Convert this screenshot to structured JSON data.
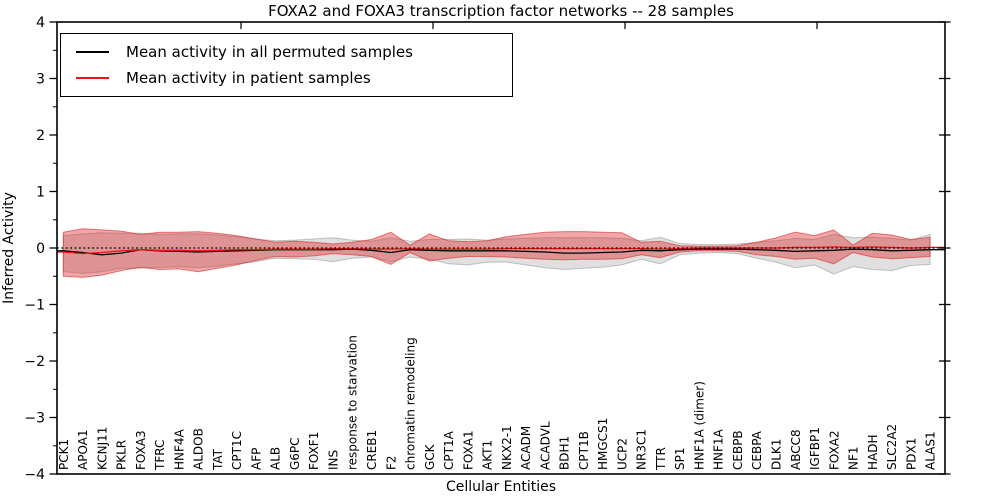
{
  "title": "FOXA2 and FOXA3 transcription factor networks -- 28 samples",
  "legend": {
    "items": [
      {
        "label": "Mean activity in all permuted samples",
        "color": "#000000"
      },
      {
        "label": "Mean activity in patient samples",
        "color": "#f01414"
      }
    ]
  },
  "axes": {
    "xlabel": "Cellular Entities",
    "ylabel": "Inferred Activity",
    "yticks": [
      4,
      3,
      2,
      1,
      0,
      -1,
      -2,
      -3,
      -4
    ],
    "ytick_labels": [
      "4",
      "3",
      "2",
      "1",
      "0",
      "−1",
      "−2",
      "−3",
      "−4"
    ]
  },
  "chart_data": {
    "type": "line",
    "title": "FOXA2 and FOXA3 transcription factor networks -- 28 samples",
    "xlabel": "Cellular Entities",
    "ylabel": "Inferred Activity",
    "ylim": [
      -4,
      4
    ],
    "grid": false,
    "legend_position": "upper left",
    "zero_line": 0,
    "categories": [
      "PCK1",
      "APOA1",
      "KCNJ11",
      "PKLR",
      "FOXA3",
      "TFRC",
      "HNF4A",
      "ALDOB",
      "TAT",
      "CPT1C",
      "AFP",
      "ALB",
      "G6PC",
      "FOXF1",
      "INS",
      "response to starvation",
      "CREB1",
      "F2",
      "chromatin remodeling",
      "GCK",
      "CPT1A",
      "FOXA1",
      "AKT1",
      "NKX2-1",
      "ACADM",
      "ACADVL",
      "BDH1",
      "CPT1B",
      "HMGCS1",
      "UCP2",
      "NR3C1",
      "TTR",
      "SP1",
      "HNF1A (dimer)",
      "HNF1A",
      "CEBPB",
      "CEBPA",
      "DLK1",
      "ABCC8",
      "IGFBP1",
      "FOXA2",
      "NF1",
      "HADH",
      "SLC2A2",
      "PDX1",
      "ALAS1"
    ],
    "series": [
      {
        "name": "Mean activity in all permuted samples",
        "color": "#000000",
        "values": [
          -0.05,
          -0.08,
          -0.12,
          -0.09,
          -0.03,
          -0.05,
          -0.06,
          -0.07,
          -0.06,
          -0.05,
          -0.04,
          -0.03,
          -0.03,
          -0.03,
          -0.03,
          -0.02,
          -0.04,
          -0.08,
          -0.03,
          -0.04,
          -0.05,
          -0.05,
          -0.05,
          -0.05,
          -0.06,
          -0.07,
          -0.09,
          -0.09,
          -0.08,
          -0.07,
          -0.04,
          -0.05,
          -0.03,
          -0.02,
          -0.02,
          -0.02,
          -0.03,
          -0.04,
          -0.06,
          -0.05,
          -0.04,
          -0.02,
          -0.03,
          -0.05,
          -0.04,
          -0.03
        ]
      },
      {
        "name": "Mean activity in patient samples",
        "color": "#f01414",
        "values": [
          -0.07,
          -0.1,
          -0.08,
          -0.05,
          -0.03,
          -0.04,
          -0.04,
          -0.05,
          -0.04,
          -0.03,
          -0.03,
          -0.02,
          -0.02,
          -0.02,
          -0.01,
          -0.01,
          -0.02,
          -0.02,
          -0.01,
          -0.02,
          -0.02,
          -0.02,
          -0.02,
          -0.01,
          -0.01,
          -0.01,
          -0.01,
          -0.01,
          -0.01,
          -0.01,
          -0.01,
          -0.02,
          -0.01,
          0,
          0,
          0,
          0,
          0,
          0.01,
          0.01,
          0.02,
          0.01,
          0.02,
          0.01,
          0,
          0.01
        ]
      }
    ],
    "bands": [
      {
        "name": "permuted-activity-range",
        "fill": "rgba(115,115,115,0.22)",
        "edge": "rgba(115,115,115,0.40)",
        "upper": [
          0.22,
          0.25,
          0.27,
          0.26,
          0.26,
          0.24,
          0.25,
          0.25,
          0.23,
          0.2,
          0.16,
          0.13,
          0.14,
          0.16,
          0.18,
          0.14,
          0.12,
          0.18,
          0.12,
          0.15,
          0.15,
          0.16,
          0.14,
          0.16,
          0.17,
          0.18,
          0.18,
          0.18,
          0.18,
          0.17,
          0.13,
          0.19,
          0.08,
          0.06,
          0.06,
          0.07,
          0.1,
          0.13,
          0.17,
          0.15,
          0.24,
          0.18,
          0.19,
          0.17,
          0.14,
          0.24
        ],
        "lower": [
          -0.42,
          -0.45,
          -0.42,
          -0.36,
          -0.36,
          -0.34,
          -0.33,
          -0.35,
          -0.32,
          -0.28,
          -0.24,
          -0.18,
          -0.19,
          -0.2,
          -0.24,
          -0.18,
          -0.16,
          -0.24,
          -0.16,
          -0.2,
          -0.28,
          -0.3,
          -0.25,
          -0.25,
          -0.3,
          -0.35,
          -0.38,
          -0.36,
          -0.34,
          -0.3,
          -0.2,
          -0.28,
          -0.12,
          -0.09,
          -0.08,
          -0.1,
          -0.18,
          -0.25,
          -0.35,
          -0.3,
          -0.46,
          -0.33,
          -0.38,
          -0.4,
          -0.31,
          -0.29
        ]
      },
      {
        "name": "patient-activity-range",
        "fill": "rgba(221,36,36,0.40)",
        "edge": "rgba(214,28,28,0.55)",
        "upper": [
          0.28,
          0.34,
          0.32,
          0.3,
          0.24,
          0.28,
          0.28,
          0.29,
          0.26,
          0.22,
          0.16,
          0.1,
          0.12,
          0.1,
          0.07,
          0.1,
          0.15,
          0.28,
          0.05,
          0.25,
          0.13,
          0.11,
          0.13,
          0.2,
          0.24,
          0.28,
          0.29,
          0.29,
          0.28,
          0.27,
          0.1,
          0.12,
          0.04,
          0.03,
          0.03,
          0.04,
          0.1,
          0.18,
          0.28,
          0.22,
          0.32,
          0.05,
          0.26,
          0.23,
          0.15,
          0.19
        ],
        "lower": [
          -0.5,
          -0.52,
          -0.48,
          -0.4,
          -0.34,
          -0.38,
          -0.37,
          -0.42,
          -0.36,
          -0.3,
          -0.22,
          -0.15,
          -0.16,
          -0.14,
          -0.1,
          -0.12,
          -0.15,
          -0.29,
          -0.08,
          -0.23,
          -0.18,
          -0.15,
          -0.15,
          -0.16,
          -0.18,
          -0.2,
          -0.21,
          -0.2,
          -0.2,
          -0.19,
          -0.12,
          -0.17,
          -0.07,
          -0.05,
          -0.05,
          -0.06,
          -0.12,
          -0.15,
          -0.2,
          -0.18,
          -0.28,
          -0.08,
          -0.16,
          -0.19,
          -0.17,
          -0.15
        ]
      }
    ]
  }
}
